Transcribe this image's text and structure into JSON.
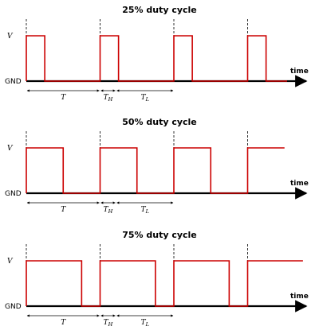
{
  "signal_color": "#cc0000",
  "axis_color": "#000000",
  "labels": {
    "v": "V",
    "gnd": "GND",
    "time": "time",
    "period": "T",
    "th_main": "T",
    "th_sub": "H",
    "tl_main": "T",
    "tl_sub": "L"
  },
  "panels": [
    {
      "title": "25% duty cycle",
      "duty": 0.25,
      "cycles": 4
    },
    {
      "title": "50% duty cycle",
      "duty": 0.5,
      "cycles": 4
    },
    {
      "title": "75% duty cycle",
      "duty": 0.75,
      "cycles": 4
    }
  ]
}
